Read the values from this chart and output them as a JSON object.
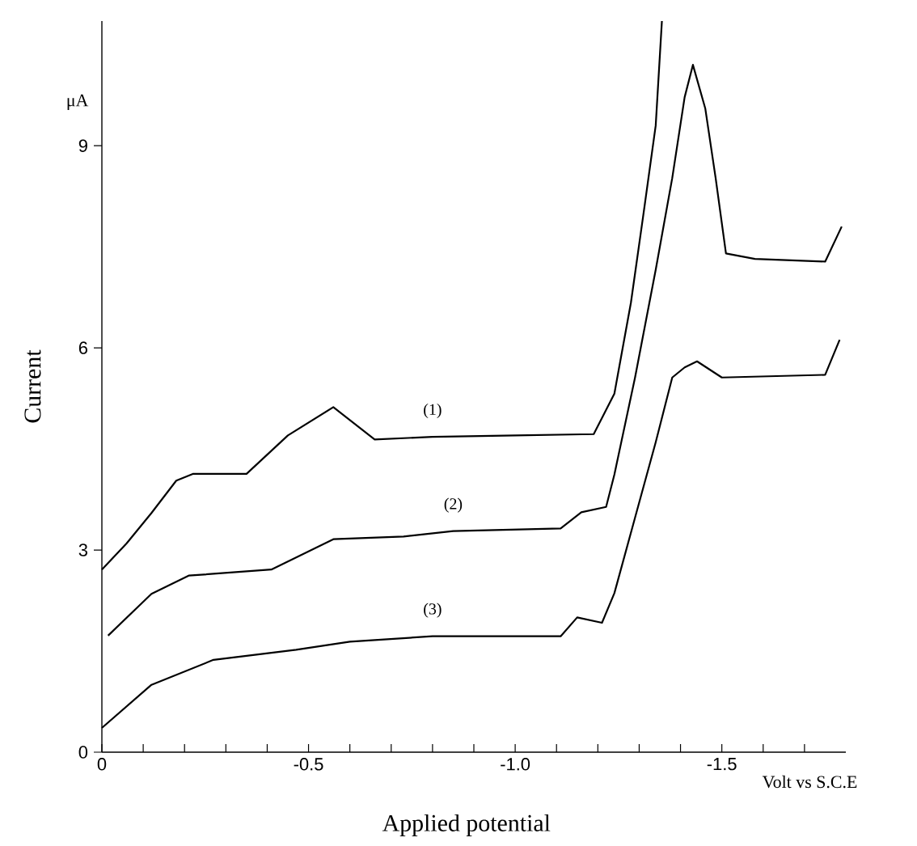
{
  "chart_data": {
    "type": "line",
    "xlabel": "Applied potential",
    "ylabel": "Current",
    "xlim": [
      0,
      -1.8
    ],
    "ylim": [
      0,
      10.85
    ],
    "xticks": [
      {
        "value": 0,
        "label": "0"
      },
      {
        "value": -0.1,
        "label": null
      },
      {
        "value": -0.2,
        "label": null
      },
      {
        "value": -0.3,
        "label": null
      },
      {
        "value": -0.4,
        "label": null
      },
      {
        "value": -0.5,
        "label": "-0.5"
      },
      {
        "value": -0.6,
        "label": null
      },
      {
        "value": -0.7,
        "label": null
      },
      {
        "value": -0.8,
        "label": null
      },
      {
        "value": -0.9,
        "label": null
      },
      {
        "value": -1.0,
        "label": "-1.0"
      },
      {
        "value": -1.1,
        "label": null
      },
      {
        "value": -1.2,
        "label": null
      },
      {
        "value": -1.3,
        "label": null
      },
      {
        "value": -1.4,
        "label": null
      },
      {
        "value": -1.5,
        "label": "-1.5"
      },
      {
        "value": -1.6,
        "label": null
      },
      {
        "value": -1.7,
        "label": null
      }
    ],
    "yticks": [
      0,
      3,
      6,
      9
    ],
    "marker": "none",
    "line_style": "solid",
    "series": [
      {
        "name": "(1)",
        "color": "#000000",
        "x": [
          0,
          -0.06,
          -0.12,
          -0.18,
          -0.22,
          -0.35,
          -0.45,
          -0.56,
          -0.66,
          -0.8,
          -1.0,
          -1.19,
          -1.24,
          -1.28,
          -1.31,
          -1.34,
          -1.355
        ],
        "values": [
          2.71,
          3.1,
          3.55,
          4.03,
          4.13,
          4.13,
          4.7,
          5.12,
          4.64,
          4.68,
          4.7,
          4.72,
          5.32,
          6.67,
          7.97,
          9.3,
          10.85
        ]
      },
      {
        "name": "(2)",
        "color": "#000000",
        "x": [
          -0.015,
          -0.12,
          -0.21,
          -0.41,
          -0.48,
          -0.56,
          -0.73,
          -0.85,
          -1.11,
          -1.16,
          -1.22,
          -1.24,
          -1.29,
          -1.34,
          -1.38,
          -1.41,
          -1.43,
          -1.46,
          -1.485,
          -1.51,
          -1.58,
          -1.75,
          -1.79
        ],
        "values": [
          1.73,
          2.35,
          2.62,
          2.71,
          2.92,
          3.16,
          3.2,
          3.28,
          3.32,
          3.56,
          3.64,
          4.12,
          5.56,
          7.16,
          8.52,
          9.72,
          10.2,
          9.55,
          8.52,
          7.4,
          7.32,
          7.28,
          7.8
        ]
      },
      {
        "name": "(3)",
        "color": "#000000",
        "x": [
          0,
          -0.12,
          -0.27,
          -0.47,
          -0.6,
          -0.8,
          -1.11,
          -1.15,
          -1.21,
          -1.24,
          -1.29,
          -1.34,
          -1.38,
          -1.41,
          -1.44,
          -1.5,
          -1.75,
          -1.785
        ],
        "values": [
          0.36,
          1.0,
          1.37,
          1.52,
          1.64,
          1.72,
          1.72,
          2.0,
          1.92,
          2.36,
          3.48,
          4.6,
          5.56,
          5.71,
          5.8,
          5.56,
          5.6,
          6.12
        ]
      }
    ],
    "annotations": [
      "μA",
      "Volt vs S.C.E"
    ]
  }
}
